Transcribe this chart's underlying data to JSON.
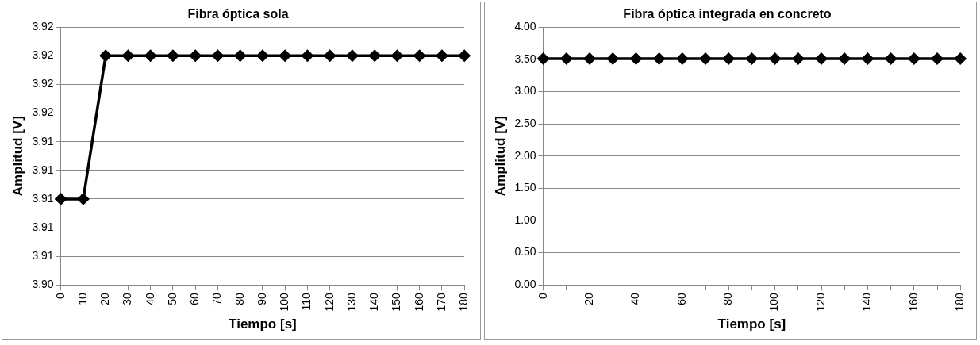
{
  "chart_data": [
    {
      "type": "line",
      "title": "Fibra óptica sola",
      "xlabel": "Tiempo [s]",
      "ylabel": "Amplitud [V]",
      "categories": [
        "0",
        "10",
        "20",
        "30",
        "40",
        "50",
        "60",
        "70",
        "80",
        "90",
        "100",
        "110",
        "120",
        "130",
        "140",
        "150",
        "160",
        "170",
        "180"
      ],
      "series": [
        {
          "color": "#000000",
          "values": [
            3.91,
            3.91,
            3.92,
            3.92,
            3.92,
            3.92,
            3.92,
            3.92,
            3.92,
            3.92,
            3.92,
            3.92,
            3.92,
            3.92,
            3.92,
            3.92,
            3.92,
            3.92,
            3.92
          ]
        }
      ],
      "ylim": [
        3.904,
        3.922
      ],
      "yticks": [
        {
          "value": 3.904,
          "label": "3.90"
        },
        {
          "value": 3.906,
          "label": "3.91"
        },
        {
          "value": 3.908,
          "label": "3.91"
        },
        {
          "value": 3.91,
          "label": "3.91"
        },
        {
          "value": 3.912,
          "label": "3.91"
        },
        {
          "value": 3.914,
          "label": "3.91"
        },
        {
          "value": 3.916,
          "label": "3.92"
        },
        {
          "value": 3.918,
          "label": "3.92"
        },
        {
          "value": 3.92,
          "label": "3.92"
        },
        {
          "value": 3.922,
          "label": "3.92"
        }
      ],
      "grid": "y",
      "legend": false,
      "marker": "diamond",
      "line_style": "solid"
    },
    {
      "type": "line",
      "title": "Fibra óptica integrada en concreto",
      "xlabel": "Tiempo [s]",
      "ylabel": "Amplitud [V]",
      "categories": [
        "0",
        null,
        "20",
        null,
        "40",
        null,
        "60",
        null,
        "80",
        null,
        "100",
        null,
        "120",
        null,
        "140",
        null,
        "160",
        null,
        "180"
      ],
      "series": [
        {
          "color": "#000000",
          "values": [
            3.51,
            3.51,
            3.51,
            3.51,
            3.51,
            3.51,
            3.51,
            3.51,
            3.51,
            3.51,
            3.51,
            3.51,
            3.51,
            3.51,
            3.51,
            3.51,
            3.51,
            3.51,
            3.51
          ]
        }
      ],
      "ylim": [
        0,
        4
      ],
      "yticks": [
        {
          "value": 0,
          "label": "0.00"
        },
        {
          "value": 0.5,
          "label": "0.50"
        },
        {
          "value": 1,
          "label": "1.00"
        },
        {
          "value": 1.5,
          "label": "1.50"
        },
        {
          "value": 2,
          "label": "2.00"
        },
        {
          "value": 2.5,
          "label": "2.50"
        },
        {
          "value": 3,
          "label": "3.00"
        },
        {
          "value": 3.5,
          "label": "3.50"
        },
        {
          "value": 4,
          "label": "4.00"
        }
      ],
      "grid": "y",
      "legend": false,
      "marker": "diamond",
      "line_style": "solid"
    }
  ]
}
